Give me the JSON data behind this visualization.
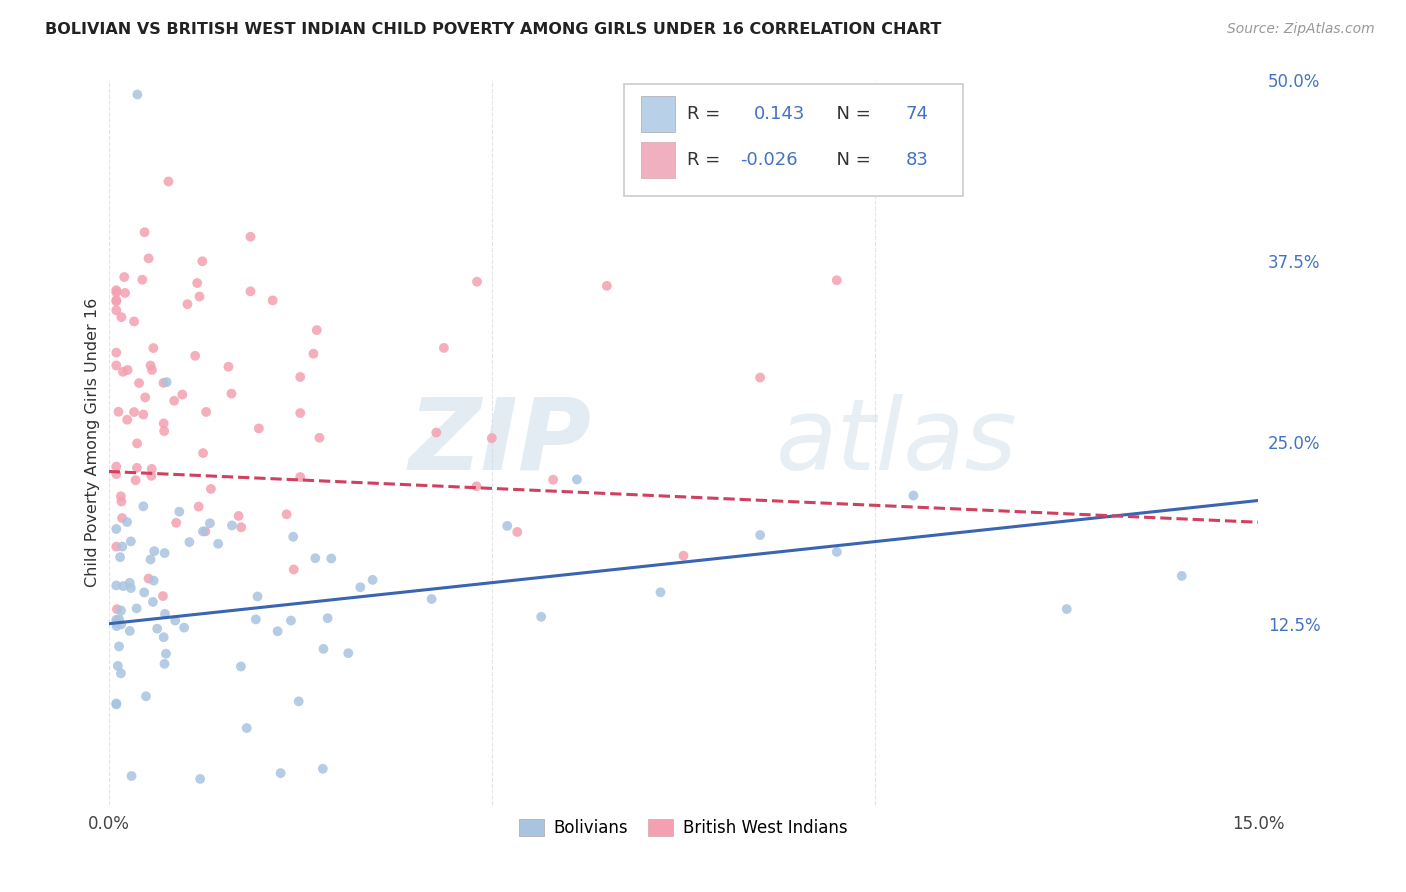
{
  "title": "BOLIVIAN VS BRITISH WEST INDIAN CHILD POVERTY AMONG GIRLS UNDER 16 CORRELATION CHART",
  "source": "Source: ZipAtlas.com",
  "ylabel": "Child Poverty Among Girls Under 16",
  "xlim": [
    0.0,
    0.15
  ],
  "ylim": [
    0.0,
    0.5
  ],
  "xtick_vals": [
    0.0,
    0.05,
    0.1,
    0.15
  ],
  "xtick_labels": [
    "0.0%",
    "",
    "",
    "15.0%"
  ],
  "ytick_vals": [
    0.0,
    0.125,
    0.25,
    0.375,
    0.5
  ],
  "ytick_labels_right": [
    "",
    "12.5%",
    "25.0%",
    "37.5%",
    "50.0%"
  ],
  "bolivian_color": "#a8c4e0",
  "bwi_color": "#f4a0b0",
  "trend_bolivian_color": "#3a65b0",
  "trend_bwi_color": "#d04060",
  "legend_box_bolivian": "#b8d0e8",
  "legend_box_bwi": "#f0b0c0",
  "R_bolivian": 0.143,
  "N_bolivian": 74,
  "R_bwi": -0.026,
  "N_bwi": 83,
  "background_color": "#ffffff",
  "grid_color": "#e0e0e0",
  "bol_trend_x": [
    0.0,
    0.15
  ],
  "bol_trend_y": [
    0.125,
    0.21
  ],
  "bwi_trend_x": [
    0.0,
    0.15
  ],
  "bwi_trend_y": [
    0.23,
    0.195
  ]
}
